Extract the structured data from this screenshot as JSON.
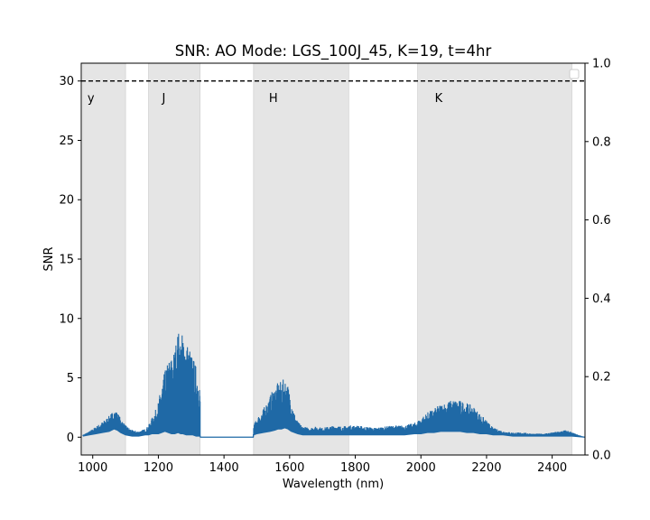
{
  "chart_data": {
    "type": "area",
    "title": "SNR: AO Mode: LGS_100J_45, K=19, t=4hr",
    "xlabel": "Wavelength (nm)",
    "ylabel": "SNR",
    "xlim": [
      965,
      2500
    ],
    "ylim": [
      -1.5,
      31.5
    ],
    "y2lim": [
      0.0,
      1.0
    ],
    "xticks": [
      1000,
      1200,
      1400,
      1600,
      1800,
      2000,
      2200,
      2400
    ],
    "yticks": [
      0,
      5,
      10,
      15,
      20,
      25,
      30
    ],
    "y2ticks": [
      "0.0",
      "0.2",
      "0.4",
      "0.6",
      "0.8",
      "1.0"
    ],
    "reference_line": {
      "y": 30,
      "style": "dashed",
      "color": "#000000"
    },
    "bands": [
      {
        "name": "y",
        "x0": 970,
        "x1": 1100
      },
      {
        "name": "J",
        "x0": 1170,
        "x1": 1327
      },
      {
        "name": "H",
        "x0": 1490,
        "x1": 1780
      },
      {
        "name": "K",
        "x0": 1990,
        "x1": 2460
      }
    ],
    "band_color": "#e5e5e5",
    "series_color": "#1f69a6",
    "series": [
      {
        "x": [
          970,
          990,
          1010,
          1030,
          1050,
          1065,
          1075,
          1085,
          1100,
          1120,
          1140,
          1160,
          1170,
          1180,
          1190,
          1200,
          1210,
          1220,
          1230,
          1240,
          1250,
          1260,
          1268,
          1275,
          1285,
          1295,
          1305,
          1315,
          1327,
          1328,
          1400,
          1489,
          1490,
          1500,
          1520,
          1540,
          1555,
          1565,
          1575,
          1585,
          1595,
          1605,
          1615,
          1625,
          1640,
          1660,
          1680,
          1700,
          1720,
          1740,
          1760,
          1780,
          1800,
          1830,
          1860,
          1890,
          1920,
          1950,
          1980,
          2000,
          2020,
          2040,
          2060,
          2080,
          2100,
          2120,
          2140,
          2160,
          2180,
          2200,
          2220,
          2250,
          2280,
          2310,
          2340,
          2370,
          2400,
          2420,
          2440,
          2455,
          2460,
          2500
        ],
        "y_high": [
          0.2,
          0.5,
          0.9,
          1.3,
          1.8,
          2.3,
          2.1,
          1.6,
          1.0,
          0.6,
          0.5,
          0.7,
          1.0,
          1.6,
          2.2,
          3.0,
          4.5,
          5.6,
          6.4,
          6.9,
          7.5,
          9.1,
          8.4,
          9.0,
          8.2,
          7.6,
          6.8,
          6.0,
          4.8,
          0.0,
          0.0,
          0.0,
          1.0,
          1.6,
          2.4,
          3.5,
          4.3,
          4.6,
          4.7,
          5.0,
          4.4,
          3.2,
          2.0,
          1.3,
          0.9,
          0.8,
          0.9,
          0.8,
          0.9,
          1.0,
          0.9,
          1.0,
          1.0,
          0.9,
          0.8,
          0.9,
          1.0,
          1.0,
          1.2,
          1.6,
          2.1,
          2.4,
          2.8,
          3.0,
          3.2,
          3.1,
          2.9,
          2.6,
          2.0,
          1.4,
          0.8,
          0.5,
          0.4,
          0.4,
          0.3,
          0.3,
          0.4,
          0.5,
          0.6,
          0.5,
          0.4,
          0.0
        ],
        "y_low": [
          0.1,
          0.2,
          0.3,
          0.4,
          0.5,
          0.7,
          0.6,
          0.4,
          0.2,
          0.1,
          0.1,
          0.2,
          0.2,
          0.3,
          0.3,
          0.3,
          0.4,
          0.5,
          0.4,
          0.3,
          0.3,
          0.4,
          0.3,
          0.3,
          0.2,
          0.2,
          0.2,
          0.1,
          0.1,
          0.0,
          0.0,
          0.0,
          0.2,
          0.3,
          0.4,
          0.5,
          0.6,
          0.7,
          0.7,
          0.8,
          0.7,
          0.5,
          0.4,
          0.3,
          0.2,
          0.2,
          0.2,
          0.2,
          0.2,
          0.2,
          0.2,
          0.2,
          0.2,
          0.2,
          0.2,
          0.2,
          0.2,
          0.2,
          0.3,
          0.3,
          0.4,
          0.4,
          0.5,
          0.5,
          0.5,
          0.5,
          0.4,
          0.4,
          0.3,
          0.3,
          0.2,
          0.2,
          0.1,
          0.1,
          0.1,
          0.1,
          0.1,
          0.1,
          0.1,
          0.1,
          0.1,
          0.0
        ]
      }
    ]
  }
}
